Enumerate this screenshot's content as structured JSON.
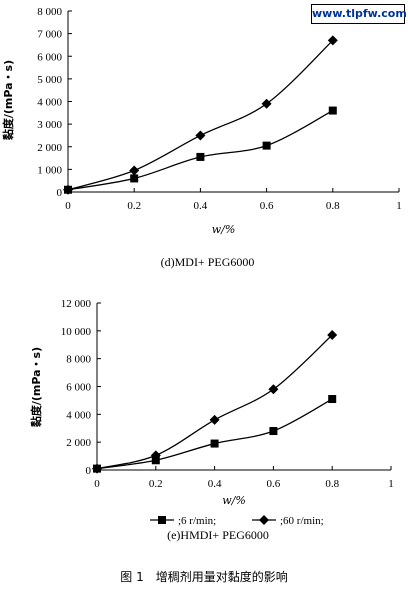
{
  "watermark": "www.tlpfw.com",
  "figure_caption": "图 1　增稠剂用量对黏度的影响",
  "chart_data": [
    {
      "type": "line",
      "caption": "(d)MDI+ PEG6000",
      "xlabel": "w/%",
      "ylabel": "黏度/(mPa・s)",
      "xlim": [
        0,
        1
      ],
      "ylim": [
        0,
        8000
      ],
      "x_ticks": [
        "0",
        "0.2",
        "0.4",
        "0.6",
        "0.8",
        "1"
      ],
      "y_ticks": [
        "0",
        "1 000",
        "2 000",
        "3 000",
        "4 000",
        "5 000",
        "6 000",
        "7 000",
        "8 000"
      ],
      "x": [
        0,
        0.2,
        0.4,
        0.6,
        0.8
      ],
      "series": [
        {
          "marker": "square",
          "values": [
            100,
            600,
            1550,
            2050,
            3600
          ]
        },
        {
          "marker": "diamond",
          "values": [
            100,
            950,
            2500,
            3900,
            6700
          ]
        }
      ]
    },
    {
      "type": "line",
      "caption": "(e)HMDI+ PEG6000",
      "xlabel": "w/%",
      "ylabel": "黏度/(mPa・s)",
      "xlim": [
        0,
        1
      ],
      "ylim": [
        0,
        12000
      ],
      "x_ticks": [
        "0",
        "0.2",
        "0.4",
        "0.6",
        "0.8",
        "1"
      ],
      "y_ticks": [
        "0",
        "2 000",
        "4 000",
        "6 000",
        "8 000",
        "10 000",
        "12 000"
      ],
      "x": [
        0,
        0.2,
        0.4,
        0.6,
        0.8
      ],
      "series": [
        {
          "name": ";6 r/min;",
          "marker": "square",
          "values": [
            100,
            700,
            1900,
            2800,
            5100
          ]
        },
        {
          "name": ";60 r/min;",
          "marker": "diamond",
          "values": [
            100,
            1050,
            3600,
            5800,
            9700
          ]
        }
      ],
      "legend": "bottom"
    }
  ]
}
